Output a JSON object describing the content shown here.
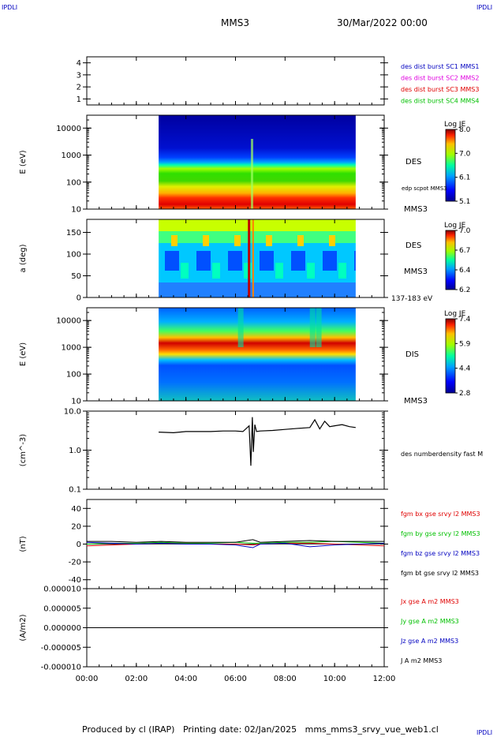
{
  "corner_tags": {
    "tl": "IPDLI",
    "tr": "IPDLI",
    "br": "IPDLI"
  },
  "header": {
    "title": "MMS3",
    "datetime": "30/Mar/2022 00:00"
  },
  "footer": {
    "text": "Produced by cl (IRAP)   Printing date: 02/Jan/2025   mms_mms3_srvy_vue_web1.cl"
  },
  "time_axis": {
    "ticks": [
      "00:00",
      "02:00",
      "04:00",
      "06:00",
      "08:00",
      "10:00",
      "12:00"
    ],
    "range_hours": [
      0,
      12
    ]
  },
  "colors": {
    "black": "#000000",
    "red": "#e00000",
    "green": "#00c000",
    "blue": "#0000c0",
    "magenta": "#e000e0"
  },
  "chart_data": [
    {
      "type": "area",
      "panel": "burst-indicator",
      "ylim": [
        0.5,
        4.5
      ],
      "ytick_labels": [
        "1",
        "2",
        "3",
        "4"
      ],
      "legend": [
        {
          "name": "des dist burst SC1 MMS1",
          "color": "#0000c0"
        },
        {
          "name": "des dist burst SC2 MMS2",
          "color": "#e000e0"
        },
        {
          "name": "des dist burst SC3 MMS3",
          "color": "#e00000"
        },
        {
          "name": "des dist burst SC4 MMS4",
          "color": "#00c000"
        }
      ]
    },
    {
      "type": "heatmap",
      "panel": "des-energy",
      "ylabel": "E (eV)",
      "yscale": "log",
      "ylim": [
        10,
        30000
      ],
      "ytick_labels": [
        "10",
        "100",
        "1000",
        "10000"
      ],
      "data_range_hours": [
        2.9,
        10.85
      ],
      "right_label": "DES",
      "overlay_label": "edp scpot MMS3",
      "bottom_label": "MMS3",
      "colorbar": {
        "title": "Log JE",
        "ticks": [
          "8.0",
          "7.0",
          "6.1",
          "5.1"
        ]
      }
    },
    {
      "type": "heatmap",
      "panel": "des-pitch",
      "ylabel": "a (deg)",
      "ylim": [
        0,
        180
      ],
      "ytick_labels": [
        "0",
        "50",
        "100",
        "150"
      ],
      "data_range_hours": [
        2.9,
        10.85
      ],
      "right_label": "DES",
      "bottom_label": "MMS3",
      "energy_label": "137-183 eV",
      "colorbar": {
        "title": "Log JE",
        "ticks": [
          "7.0",
          "6.7",
          "6.4",
          "6.2"
        ]
      }
    },
    {
      "type": "heatmap",
      "panel": "dis-energy",
      "ylabel": "E (eV)",
      "yscale": "log",
      "ylim": [
        10,
        30000
      ],
      "ytick_labels": [
        "10",
        "100",
        "1000",
        "10000"
      ],
      "data_range_hours": [
        2.9,
        10.85
      ],
      "right_label": "DIS",
      "bottom_label": "MMS3",
      "colorbar": {
        "title": "Log JE",
        "ticks": [
          "7.4",
          "5.9",
          "4.4",
          "2.8"
        ]
      }
    },
    {
      "type": "line",
      "panel": "density",
      "ylabel": "(cm^-3)",
      "yscale": "log",
      "ylim": [
        0.1,
        10
      ],
      "ytick_labels": [
        "0.1",
        "1.0",
        "10.0"
      ],
      "series": [
        {
          "name": "des numberdensity fast M",
          "color": "#000000",
          "x": [
            2.9,
            3.5,
            4.0,
            4.5,
            5.0,
            5.5,
            6.0,
            6.3,
            6.55,
            6.62,
            6.68,
            6.72,
            6.78,
            6.85,
            7.0,
            7.5,
            8.0,
            8.5,
            9.0,
            9.2,
            9.4,
            9.6,
            9.8,
            10.0,
            10.3,
            10.6,
            10.85
          ],
          "y": [
            2.9,
            2.8,
            3.0,
            3.0,
            3.0,
            3.1,
            3.1,
            3.0,
            4.2,
            0.4,
            7.0,
            0.9,
            4.5,
            3.0,
            3.1,
            3.2,
            3.4,
            3.6,
            3.8,
            6.0,
            3.5,
            5.5,
            4.0,
            4.2,
            4.5,
            4.0,
            3.8
          ]
        }
      ]
    },
    {
      "type": "line",
      "panel": "magnetic-field",
      "ylabel": "(nT)",
      "ylim": [
        -50,
        50
      ],
      "ytick_labels": [
        "-40",
        "-20",
        "0",
        "20",
        "40"
      ],
      "series": [
        {
          "name": "fgm bx gse srvy l2 MMS3",
          "color": "#e00000",
          "x": [
            0,
            1,
            2,
            3,
            4,
            5,
            6,
            6.7,
            7,
            8,
            9,
            10,
            11,
            12
          ],
          "y": [
            -2,
            -1,
            0,
            1,
            1,
            0,
            0,
            -1,
            0,
            1,
            1,
            0,
            -1,
            -2
          ]
        },
        {
          "name": "fgm by gse srvy l2 MMS3",
          "color": "#00c000",
          "x": [
            0,
            1,
            2,
            3,
            4,
            5,
            6,
            6.7,
            7,
            8,
            9,
            10,
            11,
            12
          ],
          "y": [
            0,
            1,
            1,
            2,
            1,
            1,
            2,
            1,
            1,
            2,
            2,
            3,
            2,
            1
          ]
        },
        {
          "name": "fgm bz gse srvy l2 MMS3",
          "color": "#0000c0",
          "x": [
            0,
            1,
            2,
            3,
            4,
            5,
            6,
            6.7,
            7,
            8,
            9,
            10,
            11,
            12
          ],
          "y": [
            2,
            1,
            0,
            1,
            0,
            0,
            -1,
            -4,
            0,
            1,
            -3,
            -1,
            0,
            1
          ]
        },
        {
          "name": "fgm bt gse srvy l2 MMS3",
          "color": "#000000",
          "x": [
            0,
            1,
            2,
            3,
            4,
            5,
            6,
            6.7,
            7,
            8,
            9,
            10,
            11,
            12
          ],
          "y": [
            3,
            3,
            2,
            3,
            2,
            2,
            2,
            5,
            2,
            3,
            4,
            3,
            3,
            3
          ]
        }
      ]
    },
    {
      "type": "line",
      "panel": "current-density",
      "ylabel": "(A/m2)",
      "ylim": [
        -1e-05,
        1e-05
      ],
      "ytick_labels": [
        "-0.000010",
        "-0.000005",
        "0.000000",
        "0.000005",
        "0.000010"
      ],
      "series": [
        {
          "name": "Jx gse A m2 MMS3",
          "color": "#e00000",
          "x": [
            0,
            12
          ],
          "y": [
            0,
            0
          ]
        },
        {
          "name": "Jy gse A m2 MMS3",
          "color": "#00c000",
          "x": [
            0,
            12
          ],
          "y": [
            0,
            0
          ]
        },
        {
          "name": "Jz gse A m2 MMS3",
          "color": "#0000c0",
          "x": [
            0,
            12
          ],
          "y": [
            0,
            0
          ]
        },
        {
          "name": "J A m2 MMS3",
          "color": "#000000",
          "x": [
            0,
            12
          ],
          "y": [
            0,
            0
          ]
        }
      ]
    }
  ]
}
